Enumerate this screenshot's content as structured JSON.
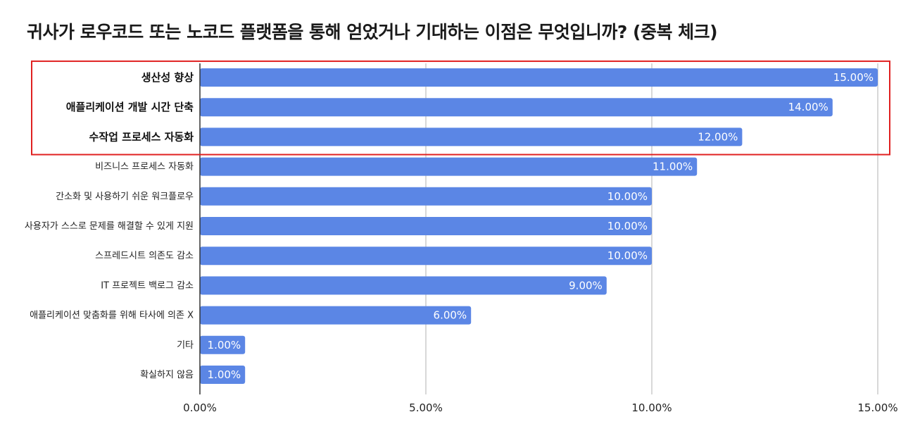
{
  "chart_data": {
    "type": "bar",
    "orientation": "horizontal",
    "title": "귀사가 로우코드 또는 노코드 플랫폼을 통해 얻었거나 기대하는 이점은 무엇입니까? (중복 체크)",
    "categories": [
      "생산성 향상",
      "애플리케이션 개발 시간 단축",
      "수작업 프로세스 자동화",
      "비즈니스 프로세스 자동화",
      "간소화 및 사용하기 쉬운 워크플로우",
      "사용자가 스스로 문제를 해결할 수 있게 지원",
      "스프레드시트 의존도 감소",
      "IT 프로젝트 백로그 감소",
      "애플리케이션 맞춤화를 위해 타사에 의존 X",
      "기타",
      "확실하지 않음"
    ],
    "values": [
      15,
      14,
      12,
      11,
      10,
      10,
      10,
      9,
      6,
      1,
      1
    ],
    "value_labels": [
      "15.00%",
      "14.00%",
      "12.00%",
      "11.00%",
      "10.00%",
      "10.00%",
      "10.00%",
      "9.00%",
      "6.00%",
      "1.00%",
      "1.00%"
    ],
    "highlighted_count": 3,
    "xlim": [
      0,
      15
    ],
    "x_ticks": [
      0,
      5,
      10,
      15
    ],
    "x_tick_labels": [
      "0.00%",
      "5.00%",
      "10.00%",
      "15.00%"
    ],
    "grid": true,
    "xlabel": "",
    "ylabel": "",
    "colors": {
      "bar": "#5b86e5",
      "highlight_box": "#e02020",
      "grid": "#cccccc",
      "axis": "#333333"
    }
  }
}
